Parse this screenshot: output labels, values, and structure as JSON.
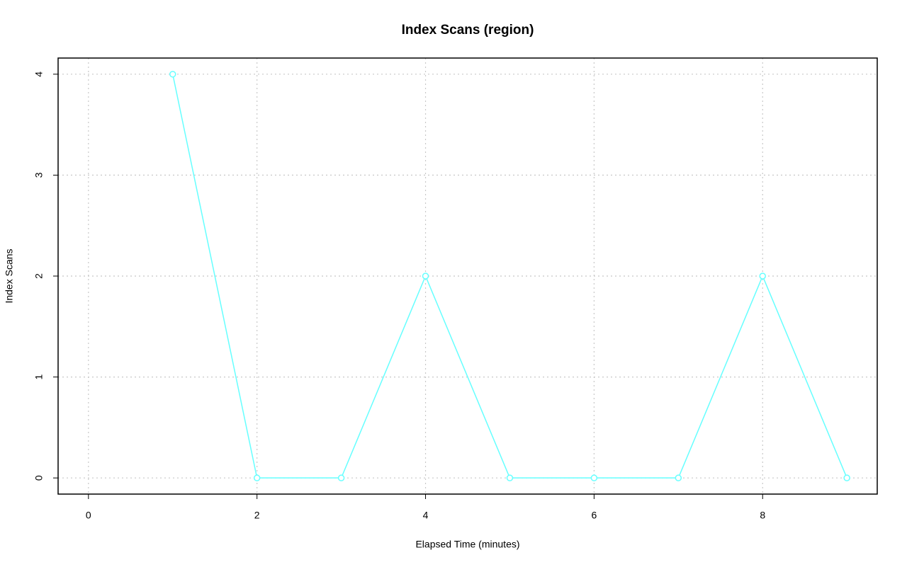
{
  "chart_data": {
    "type": "line",
    "title": "Index Scans (region)",
    "x_label": "Elapsed Time (minutes)",
    "y_label": "Index Scans",
    "x": [
      1,
      2,
      3,
      4,
      5,
      6,
      7,
      8,
      9
    ],
    "series": [
      {
        "name": "region",
        "color": "#66ffff",
        "values": [
          4,
          0,
          0,
          2,
          0,
          0,
          0,
          2,
          0
        ]
      }
    ],
    "xlim": [
      -0.36,
      9.36
    ],
    "ylim": [
      -0.16,
      4.16
    ],
    "xticks": [
      0,
      2,
      4,
      6,
      8
    ],
    "yticks": [
      0,
      1,
      2,
      3,
      4
    ],
    "grid": true
  }
}
